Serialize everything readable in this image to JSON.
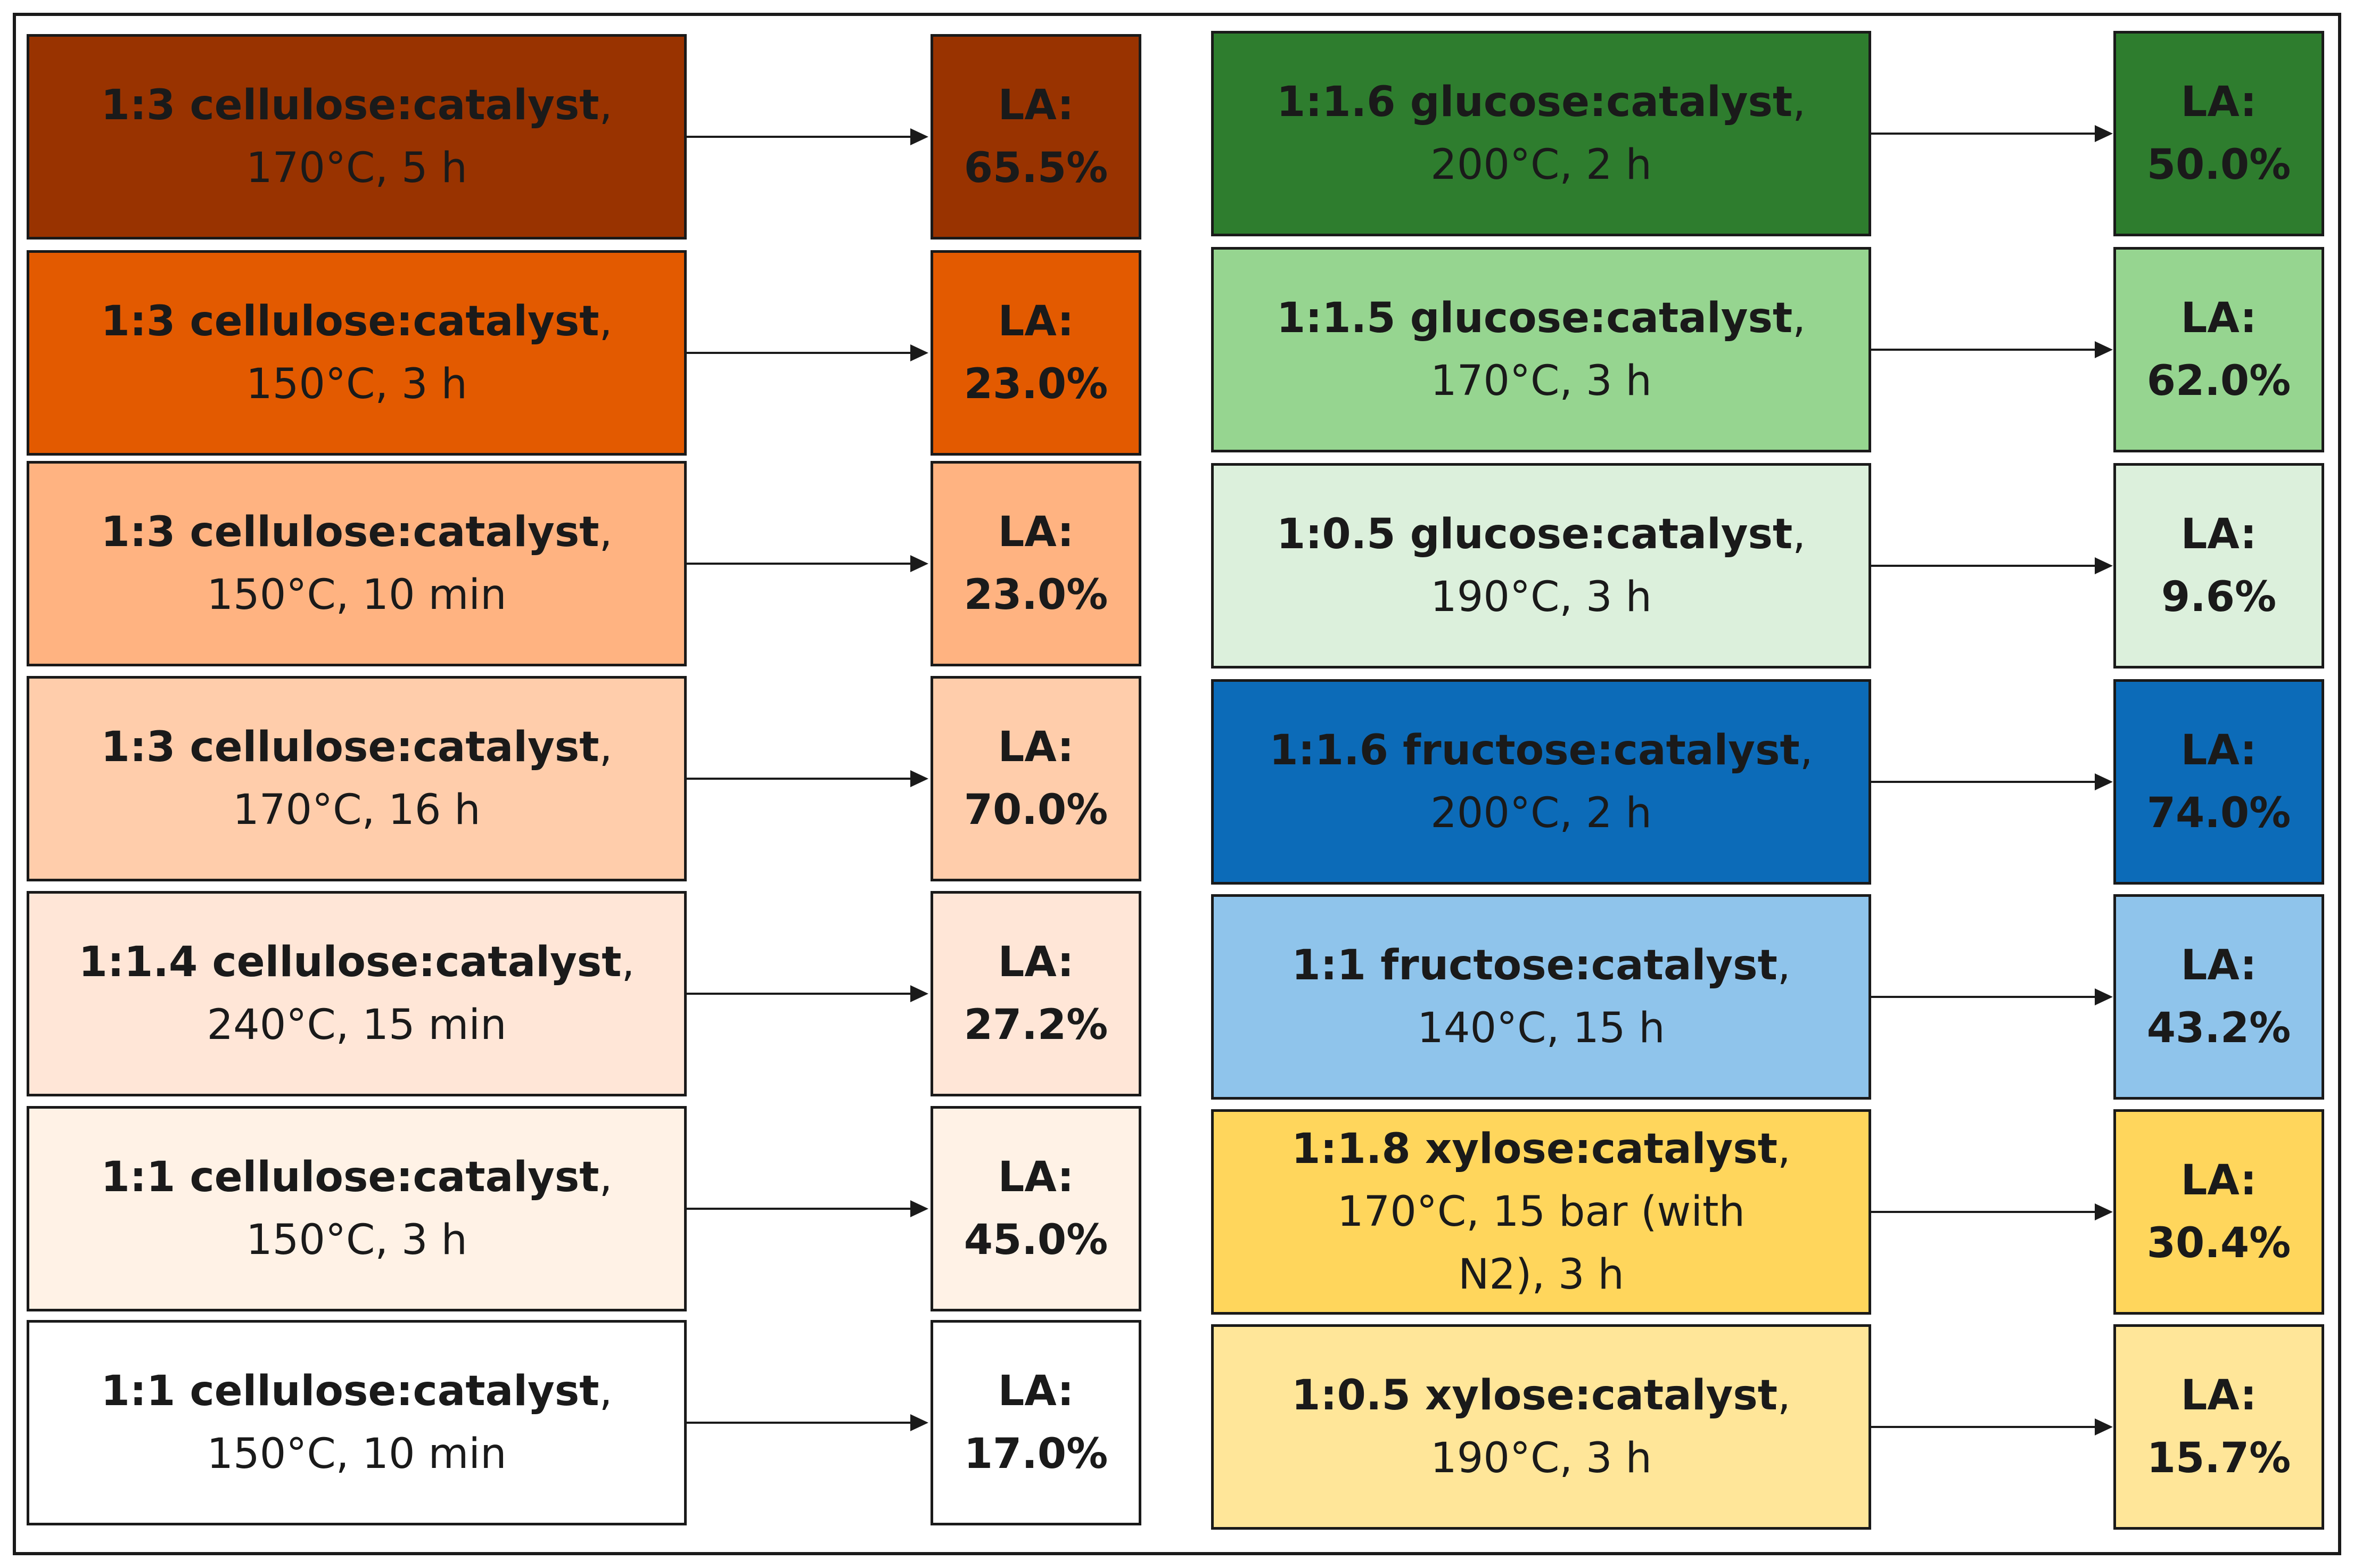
{
  "left_column": [
    {
      "line1": "1:3 cellulose:catalyst",
      "line2": "170°C, 5 h",
      "line3": "",
      "label": "LA:",
      "value": "65.5%",
      "fill": "#993300",
      "text_color": "#1a1a1a"
    },
    {
      "line1": "1:3 cellulose:catalyst",
      "line2": "150°C, 3 h",
      "line3": "",
      "label": "LA:",
      "value": "23.0%",
      "fill": "#E35A00",
      "text_color": "#1a1a1a"
    },
    {
      "line1": "1:3 cellulose:catalyst",
      "line2": "150°C, 10 min",
      "line3": "",
      "label": "LA:",
      "value": "23.0%",
      "fill": "#FFB381",
      "text_color": "#1a1a1a"
    },
    {
      "line1": "1:3 cellulose:catalyst",
      "line2": "170°C, 16 h",
      "line3": "",
      "label": "LA:",
      "value": "70.0%",
      "fill": "#FFCDAB",
      "text_color": "#1a1a1a"
    },
    {
      "line1": "1:1.4 cellulose:catalyst",
      "line2": "240°C, 15 min",
      "line3": "",
      "label": "LA:",
      "value": "27.2%",
      "fill": "#FFE6D7",
      "text_color": "#1a1a1a"
    },
    {
      "line1": "1:1 cellulose:catalyst",
      "line2": "150°C, 3 h",
      "line3": "",
      "label": "LA:",
      "value": "45.0%",
      "fill": "#FFF2E6",
      "text_color": "#1a1a1a"
    },
    {
      "line1": "1:1 cellulose:catalyst",
      "line2": "150°C, 10 min",
      "line3": "",
      "label": "LA:",
      "value": "17.0%",
      "fill": "#FFFFFF",
      "text_color": "#1a1a1a"
    }
  ],
  "right_column": [
    {
      "line1": "1:1.6 glucose:catalyst",
      "line2": "200°C, 2 h",
      "line3": "",
      "label": "LA:",
      "value": "50.0%",
      "fill": "#2E7D2E",
      "text_color": "#1a1a1a"
    },
    {
      "line1": "1:1.5 glucose:catalyst",
      "line2": "170°C, 3 h",
      "line3": "",
      "label": "LA:",
      "value": "62.0%",
      "fill": "#96D590",
      "text_color": "#1a1a1a"
    },
    {
      "line1": "1:0.5 glucose:catalyst",
      "line2": "190°C, 3 h",
      "line3": "",
      "label": "LA:",
      "value": "9.6%",
      "fill": "#DCF0DC",
      "text_color": "#1a1a1a"
    },
    {
      "line1": "1:1.6 fructose:catalyst",
      "line2": "200°C, 2 h",
      "line3": "",
      "label": "LA:",
      "value": "74.0%",
      "fill": "#0C6BB8",
      "text_color": "#1a1a1a"
    },
    {
      "line1": "1:1 fructose:catalyst",
      "line2": "140°C, 15 h",
      "line3": "",
      "label": "LA:",
      "value": "43.2%",
      "fill": "#8FC4EB",
      "text_color": "#1a1a1a"
    },
    {
      "line1": "1:1.8 xylose:catalyst",
      "line2": "170°C, 15 bar (with",
      "line3": "N2), 3 h",
      "label": "LA:",
      "value": "30.4%",
      "fill": "#FFD65C",
      "text_color": "#1a1a1a"
    },
    {
      "line1": "1:0.5 xylose:catalyst",
      "line2": "190°C, 3 h",
      "line3": "",
      "label": "LA:",
      "value": "15.7%",
      "fill": "#FFE699",
      "text_color": "#1a1a1a"
    }
  ],
  "comma": ","
}
